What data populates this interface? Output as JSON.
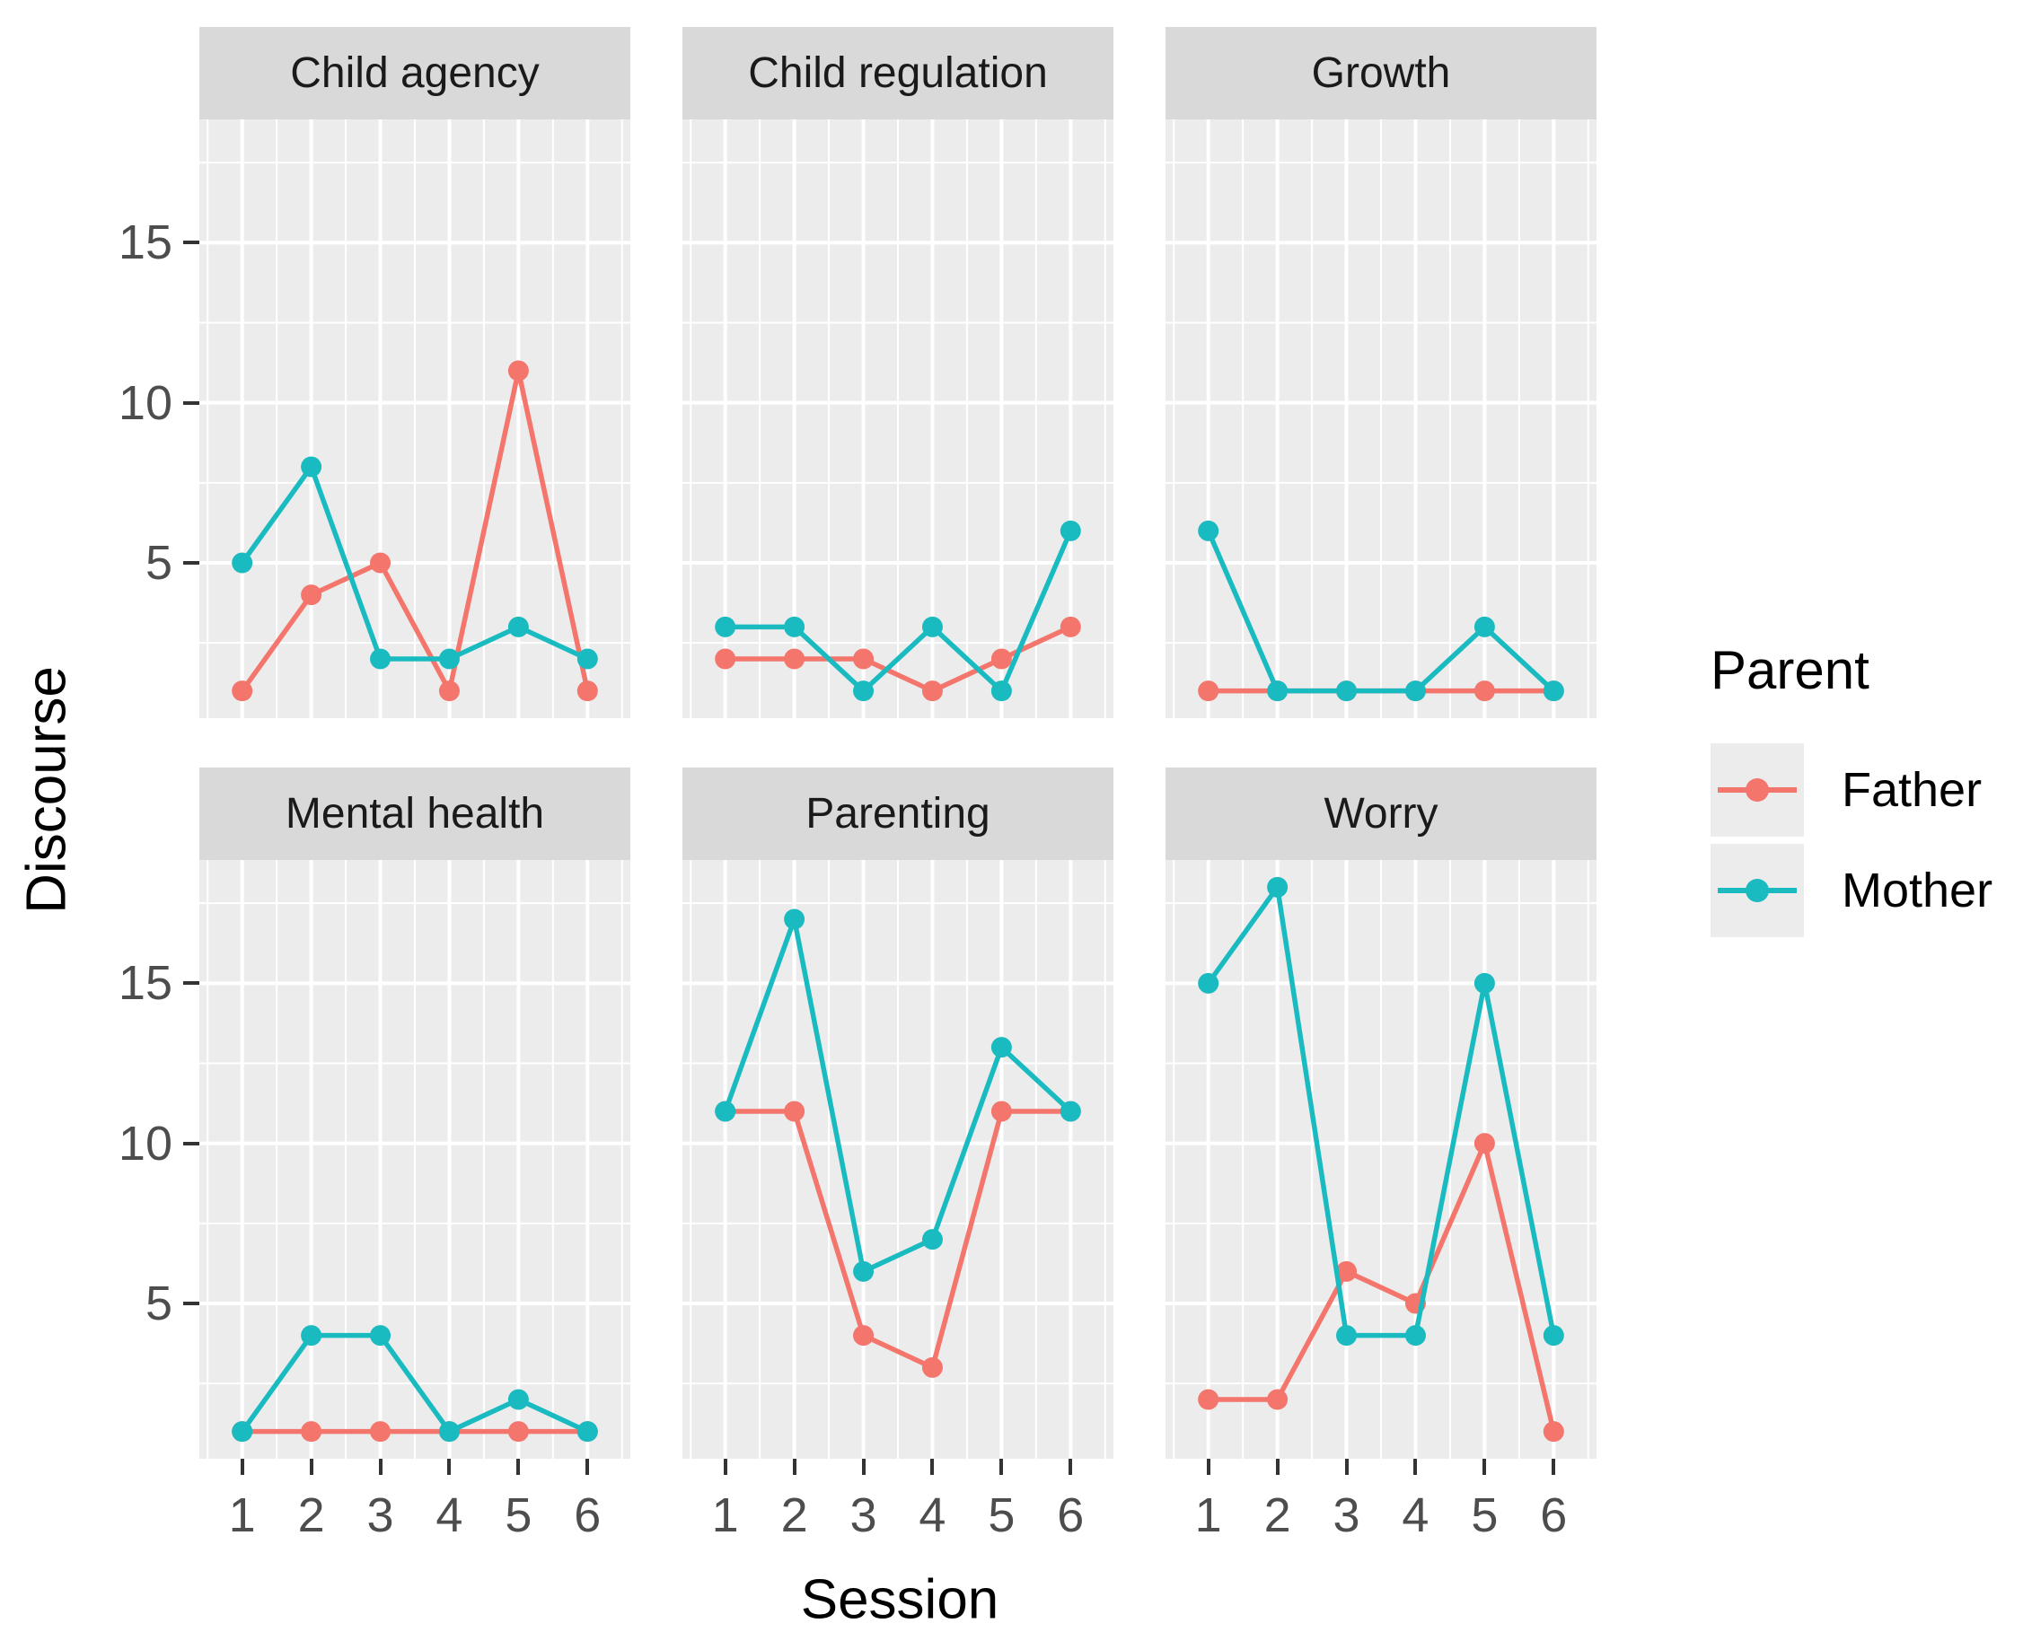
{
  "figure": {
    "y_axis_title": "Discourse",
    "x_axis_title": "Session",
    "background": "#FFFFFF",
    "panel_background": "#ECECEC",
    "strip_background": "#D9D9D9",
    "grid_color": "#FFFFFF",
    "tick_color": "#333333",
    "tick_label_color": "#4D4D4D"
  },
  "legend": {
    "title": "Parent",
    "key_background": "#ECECEC",
    "entries": [
      {
        "label": "Father",
        "color": "#F3756C"
      },
      {
        "label": "Mother",
        "color": "#1ABBC0"
      }
    ]
  },
  "chart_data": {
    "type": "line",
    "title": "",
    "xlabel": "Session",
    "ylabel": "Discourse",
    "grid": "on",
    "legend_position": "right",
    "x": [
      1,
      2,
      3,
      4,
      5,
      6
    ],
    "x_tick_labels": [
      "1",
      "2",
      "3",
      "4",
      "5",
      "6"
    ],
    "y_tick_values": [
      5,
      10,
      15
    ],
    "y_tick_labels": [
      "5",
      "10",
      "15"
    ],
    "y_minor_values": [
      2.5,
      7.5,
      12.5,
      17.5
    ],
    "x_minor_values": [
      0.5,
      1.5,
      2.5,
      3.5,
      4.5,
      5.5,
      6.5
    ],
    "xlim": [
      0.38,
      6.62
    ],
    "ylim": [
      0.15,
      18.85
    ],
    "facets": [
      {
        "label": "Child agency",
        "series": [
          {
            "name": "Father",
            "values": [
              1,
              4,
              5,
              1,
              11,
              1
            ]
          },
          {
            "name": "Mother",
            "values": [
              5,
              8,
              2,
              2,
              3,
              2
            ]
          }
        ]
      },
      {
        "label": "Child regulation",
        "series": [
          {
            "name": "Father",
            "values": [
              2,
              2,
              2,
              1,
              2,
              3
            ]
          },
          {
            "name": "Mother",
            "values": [
              3,
              3,
              1,
              3,
              1,
              6
            ]
          }
        ]
      },
      {
        "label": "Growth",
        "series": [
          {
            "name": "Father",
            "values": [
              1,
              1,
              1,
              1,
              1,
              1
            ]
          },
          {
            "name": "Mother",
            "values": [
              6,
              1,
              1,
              1,
              3,
              1
            ]
          }
        ]
      },
      {
        "label": "Mental health",
        "series": [
          {
            "name": "Father",
            "values": [
              1,
              1,
              1,
              1,
              1,
              1
            ]
          },
          {
            "name": "Mother",
            "values": [
              1,
              4,
              4,
              1,
              2,
              1
            ]
          }
        ]
      },
      {
        "label": "Parenting",
        "series": [
          {
            "name": "Father",
            "values": [
              11,
              11,
              4,
              3,
              11,
              11
            ]
          },
          {
            "name": "Mother",
            "values": [
              11,
              17,
              6,
              7,
              13,
              11
            ]
          }
        ]
      },
      {
        "label": "Worry",
        "series": [
          {
            "name": "Father",
            "values": [
              2,
              2,
              6,
              5,
              10,
              1
            ]
          },
          {
            "name": "Mother",
            "values": [
              15,
              18,
              4,
              4,
              15,
              4
            ]
          }
        ]
      }
    ]
  }
}
